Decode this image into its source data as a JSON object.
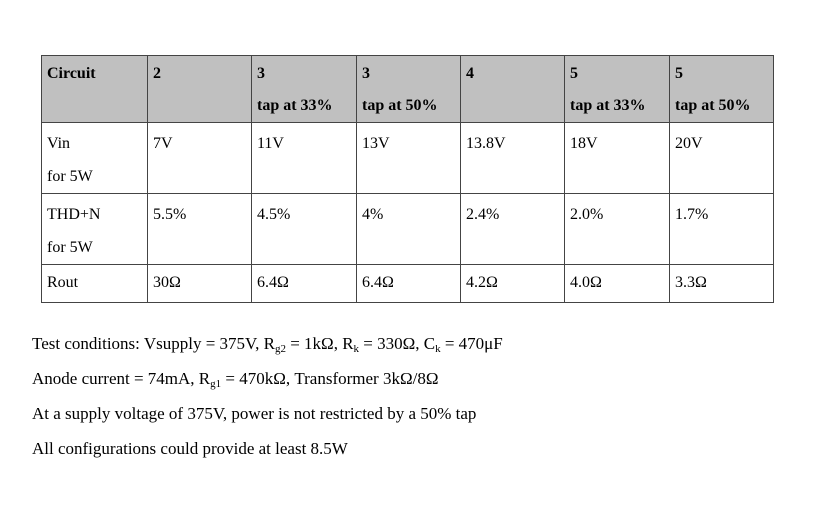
{
  "table": {
    "header": [
      {
        "line1": "Circuit",
        "line2": ""
      },
      {
        "line1": "2",
        "line2": ""
      },
      {
        "line1": "3",
        "line2": "tap at 33%"
      },
      {
        "line1": "3",
        "line2": "tap at 50%"
      },
      {
        "line1": "4",
        "line2": ""
      },
      {
        "line1": "5",
        "line2": "tap at 33%"
      },
      {
        "line1": "5",
        "line2": "tap at 50%"
      }
    ],
    "rows": [
      {
        "label_line1": "Vin",
        "label_line2": "for 5W",
        "values": [
          "7V",
          "11V",
          "13V",
          "13.8V",
          "18V",
          "20V"
        ]
      },
      {
        "label_line1": "THD+N",
        "label_line2": "for 5W",
        "values": [
          "5.5%",
          "4.5%",
          "4%",
          "2.4%",
          "2.0%",
          "1.7%"
        ]
      },
      {
        "label_line1": "Rout",
        "label_line2": "",
        "values": [
          "30Ω",
          "6.4Ω",
          "6.4Ω",
          "4.2Ω",
          "4.0Ω",
          "3.3Ω"
        ]
      }
    ]
  },
  "notes": {
    "test_conditions": {
      "prefix": "Test conditions: Vsupply = 375V, R",
      "rg2_sub": "g2",
      "rg2_value": " = 1kΩ, R",
      "rk_sub": "k",
      "rk_value": " = 330Ω, C",
      "ck_sub": "k",
      "ck_value": " = 470μF"
    },
    "anode_current": {
      "prefix": "Anode current = 74mA, R",
      "rg1_sub": "g1",
      "rest": " = 470kΩ, Transformer 3kΩ/8Ω"
    },
    "supply_note": "At a supply voltage of 375V, power is not restricted by a 50% tap",
    "configurations_note": "All configurations could provide at least 8.5W"
  }
}
